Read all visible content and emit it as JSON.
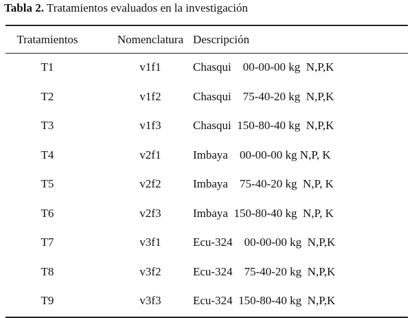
{
  "caption": {
    "label": "Tabla 2.",
    "text": " Tratamientos evaluados en la investigación"
  },
  "table": {
    "headers": [
      "Tratamientos",
      "Nomenclatura",
      "Descripción"
    ],
    "rows": [
      [
        "T1",
        "v1f1",
        "Chasqui    00-00-00 kg  N,P,K"
      ],
      [
        "T2",
        "v1f2",
        "Chasqui    75-40-20 kg  N,P,K"
      ],
      [
        "T3",
        "v1f3",
        "Chasqui  150-80-40 kg  N,P,K"
      ],
      [
        "T4",
        "v2f1",
        "Imbaya    00-00-00 kg N,P, K"
      ],
      [
        "T5",
        "v2f2",
        "Imbaya    75-40-20 kg  N,P, K"
      ],
      [
        "T6",
        "v2f3",
        "Imbaya  150-80-40 kg  N,P, K"
      ],
      [
        "T7",
        "v3f1",
        "Ecu-324    00-00-00 kg  N,P,K"
      ],
      [
        "T8",
        "v3f2",
        "Ecu-324    75-40-20 kg  N,P,K"
      ],
      [
        "T9",
        "v3f3",
        "Ecu-324  150-80-40 kg  N,P,K"
      ]
    ]
  }
}
